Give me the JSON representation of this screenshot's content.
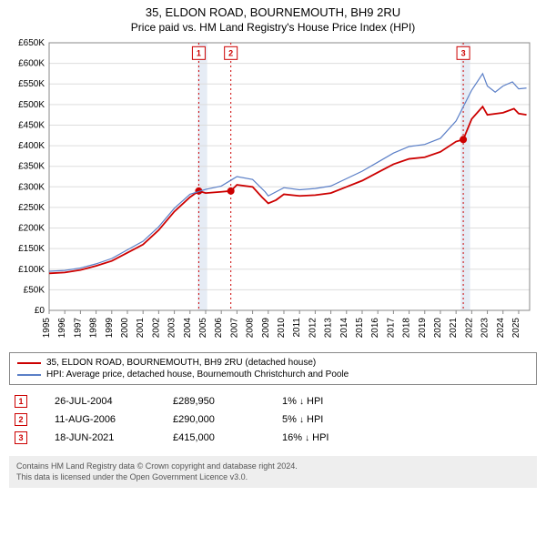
{
  "title": {
    "line1": "35, ELDON ROAD, BOURNEMOUTH, BH9 2RU",
    "line2": "Price paid vs. HM Land Registry's House Price Index (HPI)",
    "fontsize_main": 13,
    "fontsize_sub": 12,
    "color": "#000000"
  },
  "chart": {
    "type": "line",
    "background_color": "#ffffff",
    "grid_color": "#dddddd",
    "axis_color": "#888888",
    "label_fontsize": 10,
    "label_color": "#000000",
    "x": {
      "min": 1995,
      "max": 2025.7,
      "ticks": [
        1995,
        1996,
        1997,
        1998,
        1999,
        2000,
        2001,
        2002,
        2003,
        2004,
        2005,
        2006,
        2007,
        2008,
        2009,
        2010,
        2011,
        2012,
        2013,
        2014,
        2015,
        2016,
        2017,
        2018,
        2019,
        2020,
        2021,
        2022,
        2023,
        2024,
        2025
      ],
      "tick_label_rotation": -90
    },
    "y": {
      "min": 0,
      "max": 650000,
      "ticks": [
        0,
        50000,
        100000,
        150000,
        200000,
        250000,
        300000,
        350000,
        400000,
        450000,
        500000,
        550000,
        600000,
        650000
      ],
      "tick_labels": [
        "£0",
        "£50K",
        "£100K",
        "£150K",
        "£200K",
        "£250K",
        "£300K",
        "£350K",
        "£400K",
        "£450K",
        "£500K",
        "£550K",
        "£600K",
        "£650K"
      ]
    },
    "bands": [
      {
        "x": 2004.5,
        "width_years": 0.6,
        "color": "#e6ecf5"
      },
      {
        "x": 2021.3,
        "width_years": 0.6,
        "color": "#e6ecf5"
      }
    ],
    "markers": [
      {
        "idx": "1",
        "x": 2004.56,
        "y_label": 625000,
        "border_color": "#cc0000",
        "text_color": "#cc0000",
        "dash_color": "#cc0000"
      },
      {
        "idx": "2",
        "x": 2006.61,
        "y_label": 625000,
        "border_color": "#cc0000",
        "text_color": "#cc0000",
        "dash_color": "#cc0000"
      },
      {
        "idx": "3",
        "x": 2021.46,
        "y_label": 625000,
        "border_color": "#cc0000",
        "text_color": "#cc0000",
        "dash_color": "#cc0000"
      }
    ],
    "series": [
      {
        "id": "property",
        "label": "35, ELDON ROAD, BOURNEMOUTH, BH9 2RU (detached house)",
        "color": "#cc0000",
        "line_width": 1.8,
        "points": [
          [
            1995,
            90000
          ],
          [
            1996,
            92000
          ],
          [
            1997,
            98000
          ],
          [
            1998,
            108000
          ],
          [
            1999,
            120000
          ],
          [
            2000,
            140000
          ],
          [
            2001,
            160000
          ],
          [
            2002,
            195000
          ],
          [
            2003,
            240000
          ],
          [
            2004,
            275000
          ],
          [
            2004.56,
            289950
          ],
          [
            2005,
            285000
          ],
          [
            2006,
            288000
          ],
          [
            2006.61,
            290000
          ],
          [
            2007,
            305000
          ],
          [
            2008,
            300000
          ],
          [
            2008.6,
            275000
          ],
          [
            2009,
            260000
          ],
          [
            2009.5,
            268000
          ],
          [
            2010,
            282000
          ],
          [
            2011,
            278000
          ],
          [
            2012,
            280000
          ],
          [
            2013,
            285000
          ],
          [
            2014,
            300000
          ],
          [
            2015,
            315000
          ],
          [
            2016,
            335000
          ],
          [
            2017,
            355000
          ],
          [
            2018,
            368000
          ],
          [
            2019,
            372000
          ],
          [
            2020,
            385000
          ],
          [
            2021,
            410000
          ],
          [
            2021.46,
            415000
          ],
          [
            2022,
            465000
          ],
          [
            2022.7,
            495000
          ],
          [
            2023,
            475000
          ],
          [
            2024,
            480000
          ],
          [
            2024.7,
            490000
          ],
          [
            2025,
            478000
          ],
          [
            2025.5,
            475000
          ]
        ],
        "sale_dots": [
          {
            "x": 2004.56,
            "y": 289950
          },
          {
            "x": 2006.61,
            "y": 290000
          },
          {
            "x": 2021.46,
            "y": 415000
          }
        ],
        "dot_radius": 4,
        "dot_fill": "#cc0000"
      },
      {
        "id": "hpi",
        "label": "HPI: Average price, detached house, Bournemouth Christchurch and Poole",
        "color": "#5b7fc7",
        "line_width": 1.2,
        "points": [
          [
            1995,
            95000
          ],
          [
            1996,
            97000
          ],
          [
            1997,
            103000
          ],
          [
            1998,
            113000
          ],
          [
            1999,
            126000
          ],
          [
            2000,
            147000
          ],
          [
            2001,
            168000
          ],
          [
            2002,
            203000
          ],
          [
            2003,
            248000
          ],
          [
            2004,
            282000
          ],
          [
            2005,
            294000
          ],
          [
            2006,
            302000
          ],
          [
            2007,
            325000
          ],
          [
            2008,
            318000
          ],
          [
            2008.8,
            288000
          ],
          [
            2009,
            278000
          ],
          [
            2010,
            298000
          ],
          [
            2011,
            293000
          ],
          [
            2012,
            296000
          ],
          [
            2013,
            302000
          ],
          [
            2014,
            320000
          ],
          [
            2015,
            338000
          ],
          [
            2016,
            360000
          ],
          [
            2017,
            382000
          ],
          [
            2018,
            398000
          ],
          [
            2019,
            403000
          ],
          [
            2020,
            418000
          ],
          [
            2021,
            460000
          ],
          [
            2022,
            535000
          ],
          [
            2022.7,
            575000
          ],
          [
            2023,
            545000
          ],
          [
            2023.5,
            530000
          ],
          [
            2024,
            545000
          ],
          [
            2024.6,
            555000
          ],
          [
            2025,
            538000
          ],
          [
            2025.5,
            540000
          ]
        ]
      }
    ]
  },
  "legend": {
    "border_color": "#888888",
    "fontsize": 10,
    "items": [
      {
        "color": "#cc0000",
        "label": "35, ELDON ROAD, BOURNEMOUTH, BH9 2RU (detached house)"
      },
      {
        "color": "#5b7fc7",
        "label": "HPI: Average price, detached house, Bournemouth Christchurch and Poole"
      }
    ]
  },
  "sales": [
    {
      "idx": "1",
      "date": "26-JUL-2004",
      "price": "£289,950",
      "diff": "1%",
      "arrow": "↓",
      "tail": "HPI"
    },
    {
      "idx": "2",
      "date": "11-AUG-2006",
      "price": "£290,000",
      "diff": "5%",
      "arrow": "↓",
      "tail": "HPI"
    },
    {
      "idx": "3",
      "date": "18-JUN-2021",
      "price": "£415,000",
      "diff": "16%",
      "arrow": "↓",
      "tail": "HPI"
    }
  ],
  "sales_style": {
    "badge_border": "#cc0000",
    "badge_text": "#cc0000",
    "fontsize": 11
  },
  "footer": {
    "line1": "Contains HM Land Registry data © Crown copyright and database right 2024.",
    "line2": "This data is licensed under the Open Government Licence v3.0.",
    "background": "#eeeeee",
    "color": "#555555",
    "fontsize": 9
  }
}
